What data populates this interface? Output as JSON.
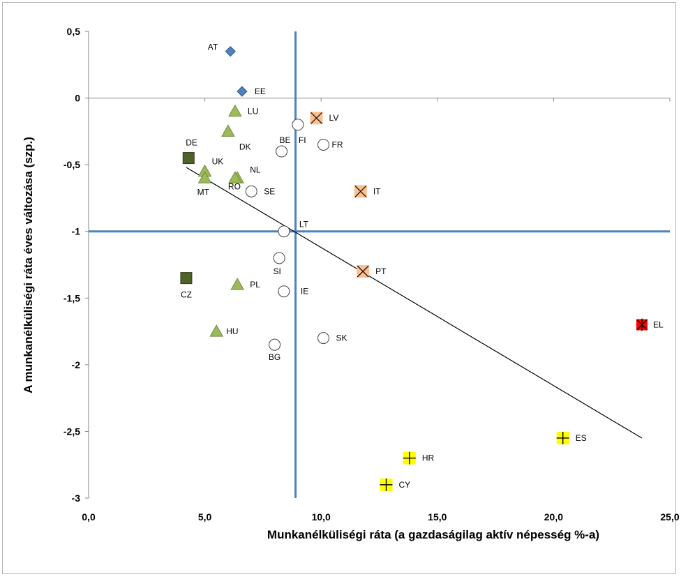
{
  "chart_data": {
    "type": "scatter",
    "title": "",
    "xlabel": "Munkanélküliségi ráta (a gazdaságilag aktív népesség %-a)",
    "ylabel": "A munkanélküliségi ráta éves változása (szp.)",
    "xlim": [
      0,
      25
    ],
    "ylim": [
      -3,
      0.5
    ],
    "x_ticks": [
      0,
      5,
      10,
      15,
      20,
      25
    ],
    "x_tick_labels": [
      "0,0",
      "5,0",
      "10,0",
      "15,0",
      "20,0",
      "25,0"
    ],
    "y_ticks": [
      0.5,
      0,
      -0.5,
      -1,
      -1.5,
      -2,
      -2.5,
      -3
    ],
    "y_tick_labels": [
      "0,5",
      "0",
      "-0,5",
      "-1",
      "-1,5",
      "-2",
      "-2,5",
      "-3"
    ],
    "grid": false,
    "legend": "none",
    "reference_lines": {
      "x": 8.9,
      "y": -1,
      "color": "#4f81bd"
    },
    "trendline": {
      "x": [
        4.2,
        23.8
      ],
      "y": [
        -0.52,
        -2.55
      ],
      "color": "#000000"
    },
    "series": [
      {
        "marker": "diamond",
        "color": "#4f81bd",
        "points": [
          {
            "label": "AT",
            "x": 6.1,
            "y": 0.35
          },
          {
            "label": "EE",
            "x": 6.6,
            "y": 0.05
          }
        ]
      },
      {
        "marker": "triangle",
        "color": "#9bbb59",
        "points": [
          {
            "label": "LU",
            "x": 6.3,
            "y": -0.1
          },
          {
            "label": "DK",
            "x": 6.0,
            "y": -0.25
          },
          {
            "label": "UK",
            "x": 5.0,
            "y": -0.55
          },
          {
            "label": "MT",
            "x": 5.0,
            "y": -0.6
          },
          {
            "label": "NL",
            "x": 6.4,
            "y": -0.6
          },
          {
            "label": "RO",
            "x": 6.3,
            "y": -0.6
          },
          {
            "label": "PL",
            "x": 6.4,
            "y": -1.4
          },
          {
            "label": "HU",
            "x": 5.5,
            "y": -1.75
          }
        ]
      },
      {
        "marker": "square",
        "color": "#4f6228",
        "points": [
          {
            "label": "DE",
            "x": 4.3,
            "y": -0.45
          },
          {
            "label": "CZ",
            "x": 4.2,
            "y": -1.35
          }
        ]
      },
      {
        "marker": "circle",
        "color": "#ffffff",
        "points": [
          {
            "label": "FI",
            "x": 9.0,
            "y": -0.2
          },
          {
            "label": "BE",
            "x": 8.3,
            "y": -0.4
          },
          {
            "label": "FR",
            "x": 10.1,
            "y": -0.35
          },
          {
            "label": "SE",
            "x": 7.0,
            "y": -0.7
          },
          {
            "label": "LT",
            "x": 8.4,
            "y": -1.0
          },
          {
            "label": "SI",
            "x": 8.2,
            "y": -1.2
          },
          {
            "label": "IE",
            "x": 8.4,
            "y": -1.45
          },
          {
            "label": "SK",
            "x": 10.1,
            "y": -1.8
          },
          {
            "label": "BG",
            "x": 8.0,
            "y": -1.85
          }
        ]
      },
      {
        "marker": "x-square",
        "color": "#fac090",
        "points": [
          {
            "label": "LV",
            "x": 9.8,
            "y": -0.15
          },
          {
            "label": "IT",
            "x": 11.7,
            "y": -0.7
          },
          {
            "label": "PT",
            "x": 11.8,
            "y": -1.3
          }
        ]
      },
      {
        "marker": "star-square",
        "color": "#ff0000",
        "points": [
          {
            "label": "EL",
            "x": 23.8,
            "y": -1.7
          }
        ]
      },
      {
        "marker": "plus-square",
        "color": "#ffff00",
        "points": [
          {
            "label": "ES",
            "x": 20.4,
            "y": -2.55
          },
          {
            "label": "HR",
            "x": 13.8,
            "y": -2.7
          },
          {
            "label": "CY",
            "x": 12.8,
            "y": -2.9
          }
        ]
      }
    ]
  }
}
